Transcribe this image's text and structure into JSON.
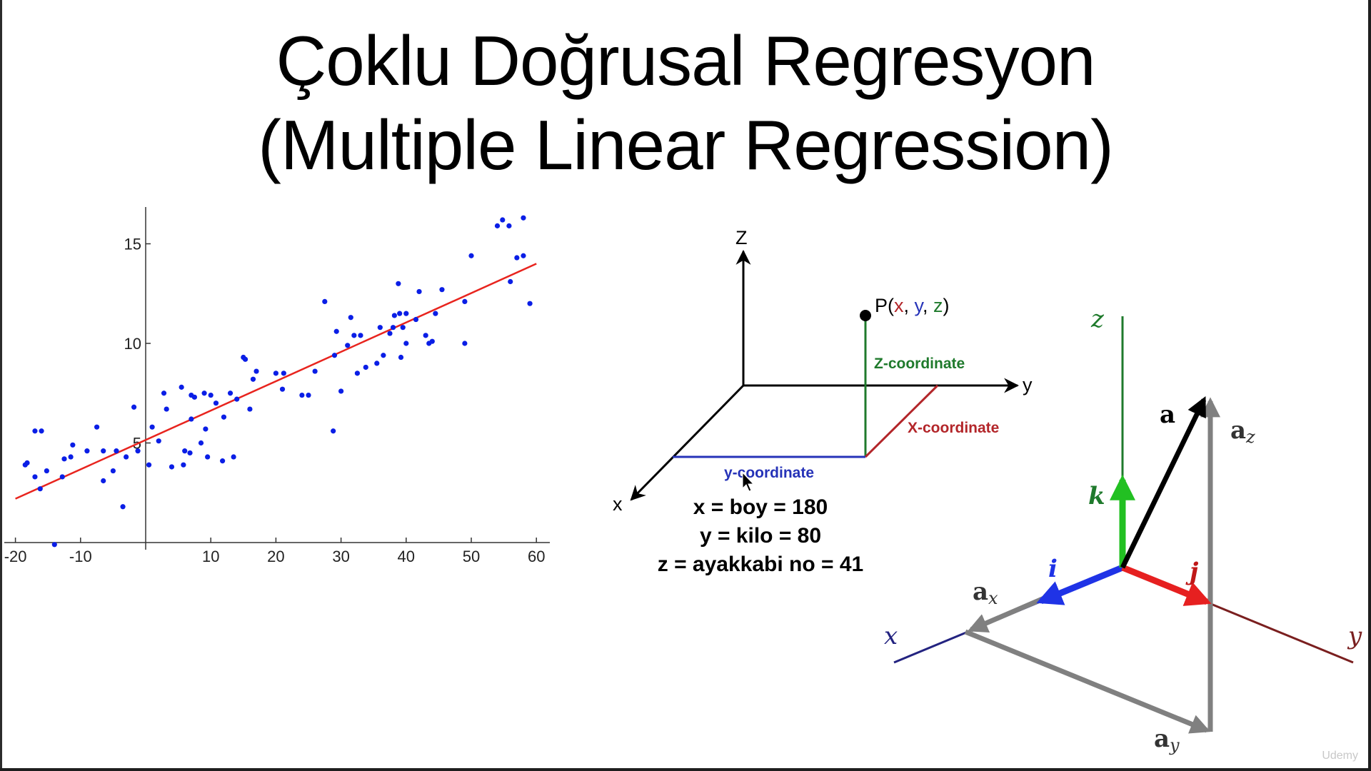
{
  "slide": {
    "title_line_1": "Çoklu Doğrusal Regresyon",
    "title_line_2": "(Multiple Linear Regression)"
  },
  "scatter_plot": {
    "x_ticks": [
      "-20",
      "-10",
      "10",
      "20",
      "30",
      "40",
      "50",
      "60"
    ],
    "y_ticks": [
      "5",
      "10",
      "15"
    ],
    "point_color": "#0a1ee6",
    "line_color": "#e8241e",
    "regression_line": {
      "x": [
        -20,
        60
      ],
      "y": [
        2.2,
        14.0
      ]
    },
    "points": [
      [
        -18.5,
        3.9
      ],
      [
        -18.2,
        4.0
      ],
      [
        -17,
        5.6
      ],
      [
        -16,
        5.6
      ],
      [
        -17,
        3.3
      ],
      [
        -16.2,
        2.7
      ],
      [
        -15.2,
        3.6
      ],
      [
        -14,
        -0.1
      ],
      [
        -12.8,
        3.3
      ],
      [
        -12.5,
        4.2
      ],
      [
        -11.5,
        4.3
      ],
      [
        -11.2,
        4.9
      ],
      [
        -9,
        4.6
      ],
      [
        -7.5,
        5.8
      ],
      [
        -6.5,
        4.6
      ],
      [
        -6.5,
        3.1
      ],
      [
        -5,
        3.6
      ],
      [
        -4.5,
        4.6
      ],
      [
        -3.5,
        1.8
      ],
      [
        -3,
        4.3
      ],
      [
        -1.8,
        6.8
      ],
      [
        -1.2,
        4.6
      ],
      [
        0.5,
        3.9
      ],
      [
        1,
        5.8
      ],
      [
        2,
        5.1
      ],
      [
        2.8,
        7.5
      ],
      [
        3.2,
        6.7
      ],
      [
        4,
        3.8
      ],
      [
        5.5,
        7.8
      ],
      [
        5.8,
        3.9
      ],
      [
        6,
        4.6
      ],
      [
        6.8,
        4.5
      ],
      [
        7,
        6.2
      ],
      [
        7,
        7.4
      ],
      [
        7.5,
        7.3
      ],
      [
        8.5,
        5.0
      ],
      [
        9,
        7.5
      ],
      [
        9.2,
        5.7
      ],
      [
        9.5,
        4.3
      ],
      [
        10,
        7.4
      ],
      [
        10.8,
        7.0
      ],
      [
        11.8,
        4.1
      ],
      [
        12,
        6.3
      ],
      [
        13,
        7.5
      ],
      [
        13.5,
        4.3
      ],
      [
        14,
        7.2
      ],
      [
        15,
        9.3
      ],
      [
        15.3,
        9.2
      ],
      [
        16,
        6.7
      ],
      [
        16.5,
        8.2
      ],
      [
        17,
        8.6
      ],
      [
        20,
        8.5
      ],
      [
        21,
        7.7
      ],
      [
        21.2,
        8.5
      ],
      [
        24,
        7.4
      ],
      [
        25,
        7.4
      ],
      [
        26,
        8.6
      ],
      [
        27.5,
        12.1
      ],
      [
        28.8,
        5.6
      ],
      [
        29,
        9.4
      ],
      [
        29.3,
        10.6
      ],
      [
        30,
        7.6
      ],
      [
        31,
        9.9
      ],
      [
        31.5,
        11.3
      ],
      [
        32,
        10.4
      ],
      [
        32.5,
        8.5
      ],
      [
        33,
        10.4
      ],
      [
        33.8,
        8.8
      ],
      [
        35.5,
        9.0
      ],
      [
        36,
        10.8
      ],
      [
        36.5,
        9.4
      ],
      [
        37.5,
        10.5
      ],
      [
        38,
        10.8
      ],
      [
        38.2,
        11.4
      ],
      [
        38.8,
        13.0
      ],
      [
        39,
        11.5
      ],
      [
        39.2,
        9.3
      ],
      [
        39.5,
        10.8
      ],
      [
        40,
        11.5
      ],
      [
        40,
        10.0
      ],
      [
        41.5,
        11.2
      ],
      [
        42,
        12.6
      ],
      [
        43,
        10.4
      ],
      [
        43.5,
        10.0
      ],
      [
        44,
        10.1
      ],
      [
        44.5,
        11.5
      ],
      [
        45.5,
        12.7
      ],
      [
        49,
        12.1
      ],
      [
        49,
        10.0
      ],
      [
        50,
        14.4
      ],
      [
        54,
        15.9
      ],
      [
        54.8,
        16.2
      ],
      [
        55.8,
        15.9
      ],
      [
        56,
        13.1
      ],
      [
        57,
        14.3
      ],
      [
        58,
        16.3
      ],
      [
        58,
        14.4
      ],
      [
        59,
        12.0
      ]
    ]
  },
  "coordinate_diagram": {
    "axis_z": "Z",
    "axis_y": "y",
    "axis_x": "x",
    "point_label_prefix": "P(",
    "point_label_x": "x",
    "point_label_sep1": ", ",
    "point_label_y": "y",
    "point_label_sep2": ", ",
    "point_label_z": "z",
    "point_label_suffix": ")",
    "z_coordinate": "Z-coordinate",
    "x_coordinate": "X-coordinate",
    "y_coordinate": "y-coordinate",
    "eq_x": "x = boy = 180",
    "eq_y": "y = kilo = 80",
    "eq_z": "z = ayakkabi no = 41",
    "colors": {
      "x": "#b3262a",
      "y": "#2633b8",
      "z": "#1f7a2c"
    }
  },
  "vector_diagram": {
    "axis_z": "z",
    "axis_x": "x",
    "axis_y": "y",
    "vector_a": "a",
    "a_z": "a",
    "a_z_sub": "z",
    "a_x": "a",
    "a_x_sub": "x",
    "a_y": "a",
    "a_y_sub": "y",
    "unit_i": "i",
    "unit_j": "j",
    "unit_k": "k",
    "colors": {
      "i": "#1f33e6",
      "j": "#e62020",
      "k": "#22c022",
      "a": "#000000",
      "component": "#808080"
    }
  },
  "watermark": "Udemy"
}
